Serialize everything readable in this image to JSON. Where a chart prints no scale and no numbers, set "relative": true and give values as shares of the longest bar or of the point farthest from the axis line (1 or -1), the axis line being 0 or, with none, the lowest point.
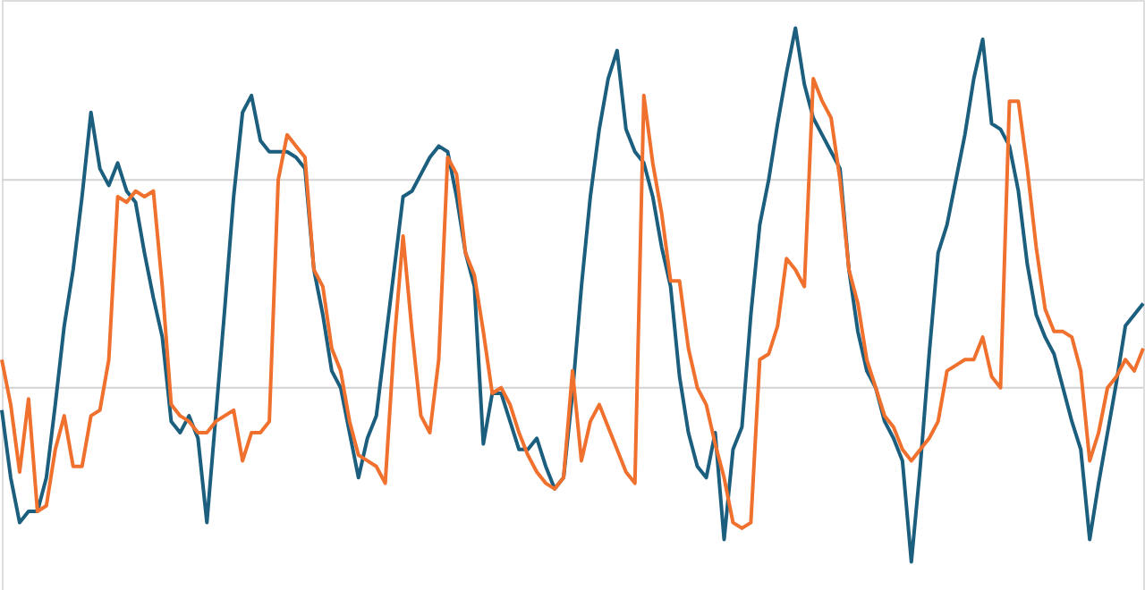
{
  "chart_data": {
    "type": "line",
    "relative": true,
    "ref_lines": [
      {
        "axis": "y",
        "value": 0.73,
        "color": "#d3d3d3"
      },
      {
        "axis": "y",
        "value": 0.36,
        "color": "#d3d3d3"
      }
    ],
    "tick_labels": false,
    "line_style": "solid",
    "categories": [
      null,
      null,
      null,
      null,
      null,
      null,
      null,
      null,
      null,
      null,
      null,
      null,
      null,
      null,
      null,
      null,
      null,
      null,
      null,
      null,
      null,
      null,
      null,
      null,
      null,
      null,
      null,
      null,
      null,
      null,
      null,
      null,
      null,
      null,
      null,
      null,
      null,
      null,
      null,
      null,
      null,
      null,
      null,
      null,
      null,
      null,
      null,
      null,
      null,
      null,
      null,
      null,
      null,
      null,
      null,
      null,
      null,
      null,
      null,
      null,
      null,
      null,
      null,
      null,
      null,
      null,
      null,
      null,
      null,
      null,
      null,
      null,
      null,
      null,
      null,
      null,
      null,
      null,
      null,
      null,
      null,
      null,
      null,
      null,
      null,
      null,
      null,
      null,
      null,
      null,
      null,
      null,
      null,
      null,
      null,
      null,
      null,
      null,
      null,
      null,
      null,
      null,
      null,
      null,
      null,
      null,
      null,
      null,
      null,
      null,
      null,
      null,
      null,
      null,
      null,
      null,
      null,
      null,
      null,
      null,
      null,
      null,
      null,
      null,
      null,
      null,
      null,
      null,
      null
    ],
    "series": [
      {
        "color": "#1b5e7e",
        "values": [
          0.32,
          0.2,
          0.12,
          0.14,
          0.14,
          0.2,
          0.33,
          0.47,
          0.57,
          0.7,
          0.85,
          0.75,
          0.72,
          0.76,
          0.71,
          0.69,
          0.6,
          0.52,
          0.45,
          0.3,
          0.28,
          0.31,
          0.27,
          0.12,
          0.31,
          0.5,
          0.7,
          0.85,
          0.88,
          0.8,
          0.78,
          0.78,
          0.78,
          0.77,
          0.75,
          0.57,
          0.49,
          0.39,
          0.36,
          0.28,
          0.2,
          0.27,
          0.31,
          0.44,
          0.57,
          0.7,
          0.71,
          0.74,
          0.77,
          0.79,
          0.78,
          0.7,
          0.6,
          0.54,
          0.26,
          0.35,
          0.35,
          0.3,
          0.25,
          0.25,
          0.27,
          0.22,
          0.18,
          0.2,
          0.35,
          0.54,
          0.7,
          0.82,
          0.91,
          0.96,
          0.82,
          0.78,
          0.76,
          0.7,
          0.61,
          0.54,
          0.38,
          0.28,
          0.22,
          0.2,
          0.28,
          0.09,
          0.25,
          0.29,
          0.49,
          0.65,
          0.73,
          0.83,
          0.92,
          1,
          0.9,
          0.84,
          0.81,
          0.78,
          0.75,
          0.57,
          0.46,
          0.39,
          0.36,
          0.3,
          0.27,
          0.23,
          0.05,
          0.22,
          0.42,
          0.6,
          0.65,
          0.73,
          0.81,
          0.91,
          0.98,
          0.83,
          0.82,
          0.79,
          0.71,
          0.58,
          0.49,
          0.45,
          0.42,
          0.36,
          0.3,
          0.25,
          0.09,
          0.19,
          0.28,
          0.37,
          0.47,
          0.49,
          0.51
        ]
      },
      {
        "color": "#f0702e",
        "values": [
          0.41,
          0.33,
          0.21,
          0.34,
          0.14,
          0.15,
          0.25,
          0.31,
          0.22,
          0.22,
          0.31,
          0.32,
          0.41,
          0.7,
          0.69,
          0.71,
          0.7,
          0.71,
          0.54,
          0.33,
          0.31,
          0.3,
          0.28,
          0.28,
          0.3,
          0.31,
          0.32,
          0.23,
          0.28,
          0.28,
          0.3,
          0.73,
          0.81,
          0.79,
          0.77,
          0.57,
          0.54,
          0.43,
          0.39,
          0.3,
          0.24,
          0.23,
          0.22,
          0.19,
          0.44,
          0.63,
          0.46,
          0.31,
          0.28,
          0.41,
          0.77,
          0.74,
          0.6,
          0.56,
          0.46,
          0.35,
          0.36,
          0.33,
          0.28,
          0.24,
          0.21,
          0.19,
          0.18,
          0.2,
          0.39,
          0.23,
          0.3,
          0.33,
          0.29,
          0.25,
          0.21,
          0.19,
          0.88,
          0.76,
          0.67,
          0.55,
          0.55,
          0.43,
          0.36,
          0.33,
          0.26,
          0.2,
          0.12,
          0.11,
          0.12,
          0.41,
          0.42,
          0.47,
          0.59,
          0.57,
          0.54,
          0.91,
          0.87,
          0.84,
          0.73,
          0.57,
          0.51,
          0.41,
          0.36,
          0.31,
          0.29,
          0.25,
          0.23,
          0.25,
          0.27,
          0.3,
          0.39,
          0.4,
          0.41,
          0.41,
          0.45,
          0.38,
          0.36,
          0.87,
          0.87,
          0.75,
          0.61,
          0.5,
          0.46,
          0.46,
          0.45,
          0.39,
          0.23,
          0.28,
          0.36,
          0.38,
          0.41,
          0.39,
          0.43
        ]
      }
    ]
  }
}
